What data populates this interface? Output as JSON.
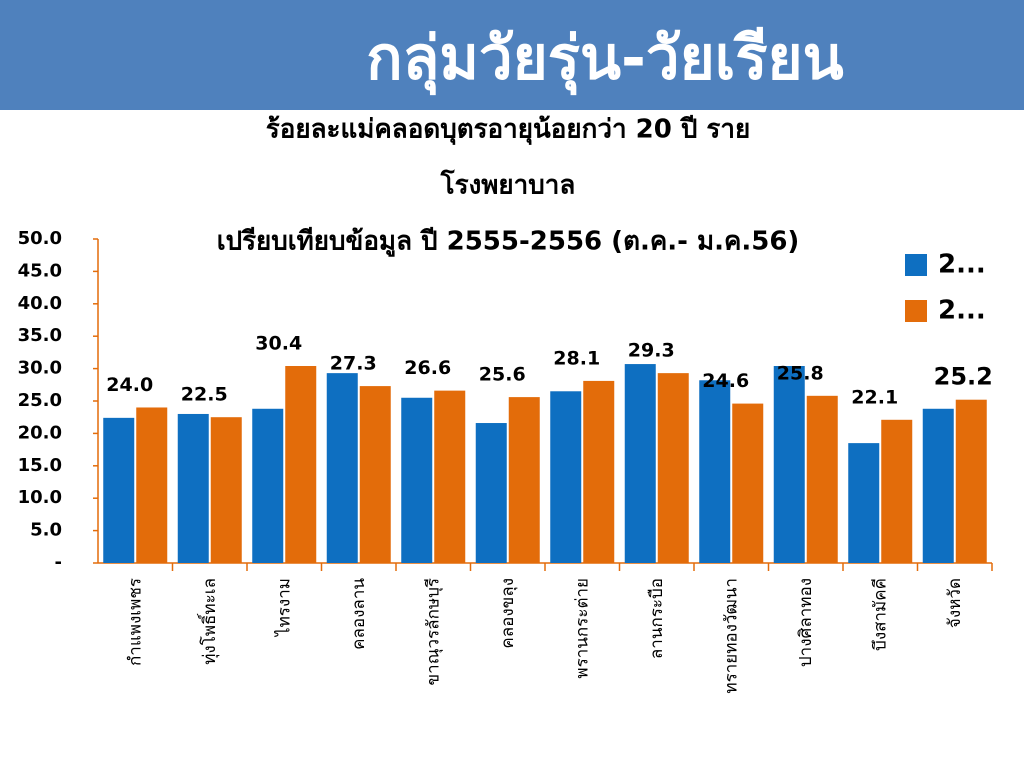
{
  "header": {
    "title": "กลุ่มวัยรุ่น-วัยเรียน"
  },
  "chart_data": {
    "type": "bar",
    "title": [
      "ร้อยละแม่คลอดบุตรอายุน้อยกว่า 20 ปี ราย",
      "โรงพยาบาล",
      "เปรียบเทียบข้อมูล ปี 2555-2556 (ต.ค.- ม.ค.56)"
    ],
    "categories": [
      "กำแพงเพชร",
      "ทุ่งโพธิ์ทะเล",
      "ไทรงาม",
      "คลองลาน",
      "ขาณุวรลักษบุรี",
      "คลองขลุง",
      "พรานกระต่าย",
      "ลานกระบือ",
      "ทรายทองวัฒนา",
      "ปางศิลาทอง",
      "บึงสามัคคี",
      "จังหวัด"
    ],
    "series": [
      {
        "name": "2...",
        "color": "#0e6fc1",
        "values": [
          22.4,
          23.0,
          23.8,
          29.3,
          25.5,
          21.6,
          26.5,
          30.7,
          28.2,
          30.4,
          18.5,
          23.8
        ]
      },
      {
        "name": "2...",
        "color": "#e36c0a",
        "values": [
          24.0,
          22.5,
          30.4,
          27.3,
          26.6,
          25.6,
          28.1,
          29.3,
          24.6,
          25.8,
          22.1,
          25.2
        ],
        "value_labels": [
          "24.0",
          "22.5",
          "30.4",
          "27.3",
          "26.6",
          "25.6",
          "28.1",
          "29.3",
          "24.6",
          "25.8",
          "22.1",
          "25.2"
        ]
      }
    ],
    "ylim": [
      0,
      50
    ],
    "yticks": [
      {
        "value": 0,
        "label": "-"
      },
      {
        "value": 5,
        "label": "5.0"
      },
      {
        "value": 10,
        "label": "10.0"
      },
      {
        "value": 15,
        "label": "15.0"
      },
      {
        "value": 20,
        "label": "20.0"
      },
      {
        "value": 25,
        "label": "25.0"
      },
      {
        "value": 30,
        "label": "30.0"
      },
      {
        "value": 35,
        "label": "35.0"
      },
      {
        "value": 40,
        "label": "40.0"
      },
      {
        "value": 45,
        "label": "45.0"
      },
      {
        "value": 50,
        "label": "50.0"
      }
    ]
  }
}
